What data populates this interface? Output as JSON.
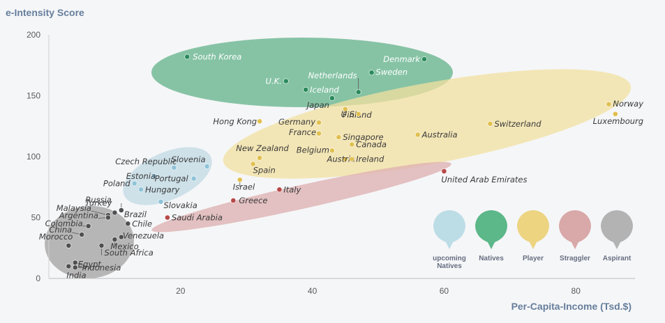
{
  "chart_data": {
    "type": "scatter",
    "title": "",
    "ylabel": "e-Intensity Score",
    "xlabel": "Per-Capita-Income (Tsd.$)",
    "xlim": [
      0,
      89
    ],
    "ylim": [
      0,
      200
    ],
    "x_ticks": [
      20,
      40,
      60,
      80
    ],
    "y_ticks": [
      0,
      50,
      100,
      150,
      200
    ],
    "grid": false,
    "legend_position": "bottom-right",
    "colors": {
      "natives": "#2a8a5c",
      "player": "#e0c050",
      "upcoming": "#8fc3d8",
      "straggler": "#b84848",
      "aspirant": "#505050"
    },
    "legend": [
      {
        "key": "upcoming",
        "label": "upcoming Natives",
        "color": "#bcdde6"
      },
      {
        "key": "natives",
        "label": "Natives",
        "color": "#5cb789"
      },
      {
        "key": "player",
        "label": "Player",
        "color": "#ecd481"
      },
      {
        "key": "straggler",
        "label": "Straggler",
        "color": "#d9a8a8"
      },
      {
        "key": "aspirant",
        "label": "Aspirant",
        "color": "#b3b3b3"
      }
    ],
    "series": [
      {
        "key": "natives",
        "points": [
          {
            "label": "South Korea",
            "x": 21,
            "y": 182
          },
          {
            "label": "Denmark",
            "x": 57,
            "y": 180
          },
          {
            "label": "Sweden",
            "x": 49,
            "y": 169
          },
          {
            "label": "Netherlands",
            "x": 47,
            "y": 153
          },
          {
            "label": "U.K.",
            "x": 36,
            "y": 162
          },
          {
            "label": "Iceland",
            "x": 39,
            "y": 155
          },
          {
            "label": "Japan",
            "x": 43,
            "y": 148
          }
        ]
      },
      {
        "key": "player",
        "points": [
          {
            "label": "Finland",
            "x": 45,
            "y": 139
          },
          {
            "label": "U.S.",
            "x": 47,
            "y": 135
          },
          {
            "label": "Hong Kong",
            "x": 32,
            "y": 129
          },
          {
            "label": "Germany",
            "x": 41,
            "y": 128
          },
          {
            "label": "France",
            "x": 41,
            "y": 119
          },
          {
            "label": "Singapore",
            "x": 44,
            "y": 116
          },
          {
            "label": "Canada",
            "x": 46,
            "y": 110
          },
          {
            "label": "Australia",
            "x": 56,
            "y": 118
          },
          {
            "label": "Switzerland",
            "x": 67,
            "y": 127
          },
          {
            "label": "Norway",
            "x": 85,
            "y": 143
          },
          {
            "label": "Luxembourg",
            "x": 86,
            "y": 135
          },
          {
            "label": "Belgium",
            "x": 43,
            "y": 105
          },
          {
            "label": "Austria",
            "x": 45,
            "y": 98
          },
          {
            "label": "Ireland",
            "x": 46,
            "y": 98
          },
          {
            "label": "New Zealand",
            "x": 32,
            "y": 99
          },
          {
            "label": "Spain",
            "x": 31,
            "y": 94
          },
          {
            "label": "Israel",
            "x": 29,
            "y": 81
          }
        ]
      },
      {
        "key": "upcoming",
        "points": [
          {
            "label": "Czech Republic",
            "x": 19,
            "y": 91
          },
          {
            "label": "Slovenia",
            "x": 24,
            "y": 92
          },
          {
            "label": "Estonia",
            "x": 16,
            "y": 84
          },
          {
            "label": "Portugal",
            "x": 22,
            "y": 82
          },
          {
            "label": "Poland",
            "x": 13,
            "y": 78
          },
          {
            "label": "Hungary",
            "x": 14,
            "y": 73
          },
          {
            "label": "Slovakia",
            "x": 17,
            "y": 63
          }
        ]
      },
      {
        "key": "straggler",
        "points": [
          {
            "label": "United Arab Emirates",
            "x": 60,
            "y": 88
          },
          {
            "label": "Italy",
            "x": 35,
            "y": 73
          },
          {
            "label": "Greece",
            "x": 28,
            "y": 64
          },
          {
            "label": "Saudi Arabia",
            "x": 18,
            "y": 50
          }
        ]
      },
      {
        "key": "aspirant",
        "points": [
          {
            "label": "Russia",
            "x": 11,
            "y": 56
          },
          {
            "label": "Turkey",
            "x": 10,
            "y": 54
          },
          {
            "label": "Brazil",
            "x": 11,
            "y": 56
          },
          {
            "label": "Malaysia",
            "x": 9,
            "y": 52
          },
          {
            "label": "Argentina",
            "x": 9,
            "y": 50
          },
          {
            "label": "Chile",
            "x": 12,
            "y": 45
          },
          {
            "label": "Colombia",
            "x": 6,
            "y": 43
          },
          {
            "label": "China",
            "x": 5,
            "y": 36
          },
          {
            "label": "Venezuela",
            "x": 11,
            "y": 34
          },
          {
            "label": "Morocco",
            "x": 3,
            "y": 27
          },
          {
            "label": "Mexico",
            "x": 10,
            "y": 32
          },
          {
            "label": "South Africa",
            "x": 8,
            "y": 27
          },
          {
            "label": "Egypt",
            "x": 4,
            "y": 13
          },
          {
            "label": "India",
            "x": 3,
            "y": 10
          },
          {
            "label": "Indonesia",
            "x": 4,
            "y": 9
          }
        ]
      }
    ]
  }
}
